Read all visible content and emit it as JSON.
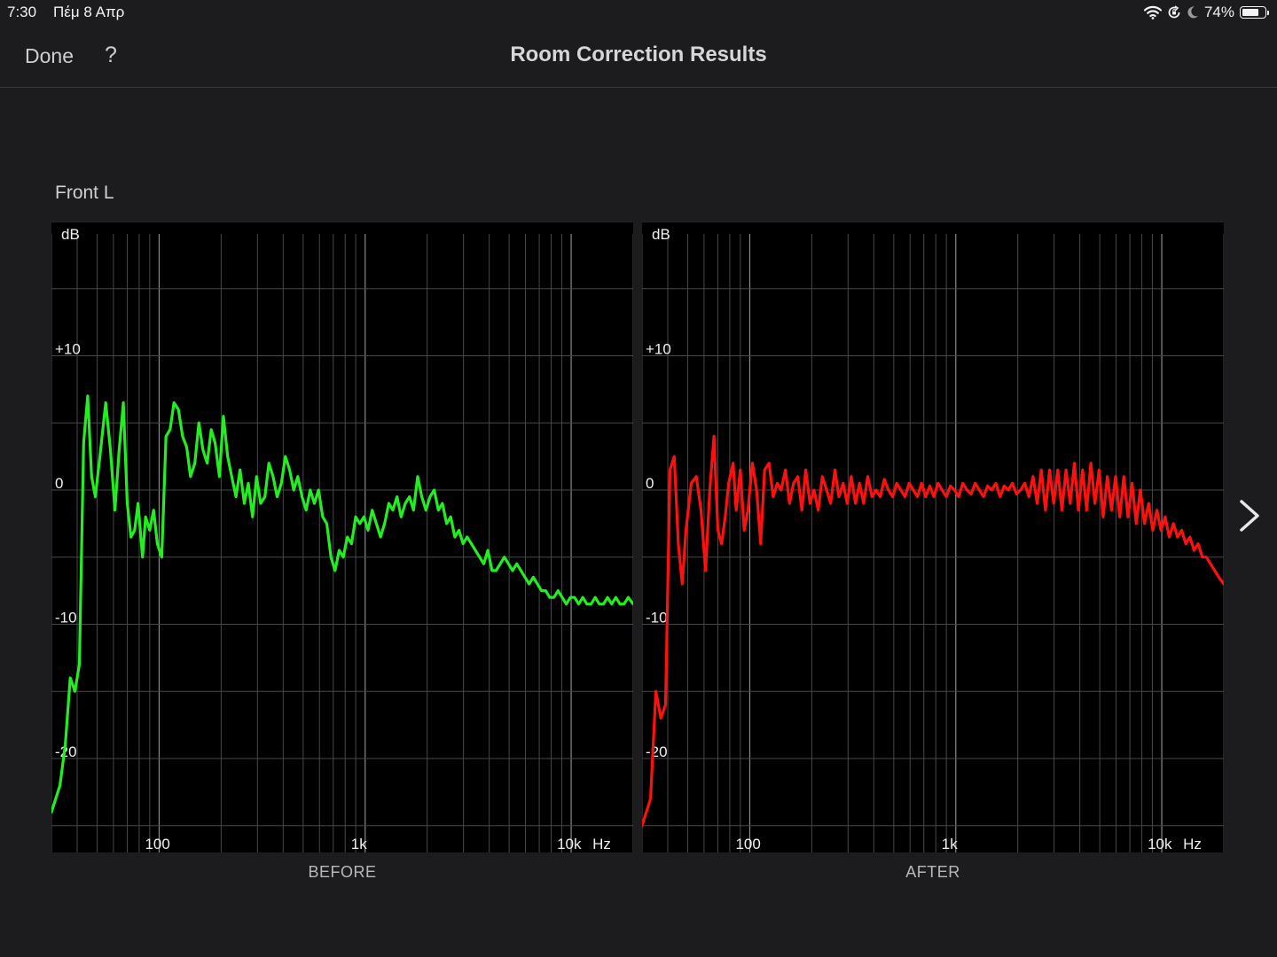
{
  "status_bar": {
    "time": "7:30",
    "date": "Πέμ 8 Απρ",
    "battery": "74%",
    "battery_level": 0.74,
    "icons": [
      "wifi-icon",
      "orientation-lock-icon",
      "moon-icon",
      "battery-icon"
    ]
  },
  "nav": {
    "done_label": "Done",
    "help_label": "?",
    "title": "Room Correction Results"
  },
  "channel": "Front L",
  "next_icon": "chevron-right-icon",
  "chart_data": [
    {
      "type": "line",
      "caption": "BEFORE",
      "color": "#22ee22",
      "xlabel": "Hz",
      "ylabel": "dB",
      "x_scale": "log",
      "xlim": [
        30,
        20000
      ],
      "ylim": [
        -27,
        20
      ],
      "x_ticks": [
        "100",
        "1k",
        "10k"
      ],
      "y_ticks": [
        "+10",
        "0",
        "-10",
        "-20"
      ],
      "grid": true,
      "x": [
        30,
        33,
        35,
        37,
        39,
        41,
        43,
        45,
        47,
        49,
        52,
        55,
        58,
        61,
        64,
        67,
        70,
        73,
        76,
        79,
        83,
        86,
        90,
        94,
        98,
        103,
        108,
        113,
        118,
        124,
        130,
        136,
        142,
        149,
        156,
        163,
        171,
        179,
        187,
        196,
        205,
        215,
        225,
        236,
        247,
        259,
        271,
        284,
        297,
        311,
        326,
        341,
        357,
        374,
        392,
        410,
        430,
        450,
        471,
        494,
        517,
        541,
        567,
        594,
        622,
        651,
        682,
        714,
        748,
        783,
        820,
        859,
        900,
        942,
        987,
        1033,
        1082,
        1133,
        1187,
        1243,
        1302,
        1363,
        1428,
        1495,
        1566,
        1640,
        1717,
        1798,
        1883,
        1972,
        2065,
        2163,
        2265,
        2372,
        2484,
        2601,
        2724,
        2853,
        2987,
        3128,
        3276,
        3431,
        3593,
        3763,
        3940,
        4126,
        4321,
        4525,
        4739,
        4963,
        5197,
        5443,
        5700,
        5969,
        6251,
        6546,
        6855,
        7179,
        7518,
        7873,
        8245,
        8634,
        9042,
        9469,
        9916,
        10384,
        10875,
        11388,
        11926,
        12489,
        13079,
        13697,
        14344,
        15021,
        15730,
        16473,
        17251,
        18066,
        18919,
        20000
      ],
      "y": [
        -24,
        -22,
        -19,
        -14,
        -15,
        -13,
        3.5,
        7,
        1,
        -0.5,
        3,
        6.5,
        3,
        -1.5,
        3,
        6.5,
        -1,
        -3.5,
        -3,
        -1,
        -5,
        -2,
        -3,
        -1.5,
        -4,
        -5,
        4,
        4.5,
        6.5,
        6,
        4,
        3.2,
        1,
        2,
        5,
        3,
        2,
        4.5,
        3.5,
        1,
        5.5,
        2.5,
        1,
        -0.5,
        1.5,
        -1,
        0.5,
        -2,
        1,
        -1,
        -0.5,
        2,
        1,
        -0.5,
        0.5,
        2.5,
        1.5,
        0,
        1,
        -0.5,
        -1.5,
        0,
        -1,
        0,
        -2,
        -2.5,
        -5,
        -6,
        -4.5,
        -5,
        -3.5,
        -4,
        -2,
        -2.5,
        -2,
        -3,
        -1.5,
        -2.5,
        -3.5,
        -2.5,
        -1,
        -1.5,
        -0.5,
        -2,
        -1,
        -0.5,
        -1.5,
        1,
        -0.5,
        -1.5,
        -0.5,
        0,
        -1.5,
        -1,
        -2.5,
        -2,
        -3.5,
        -3,
        -4,
        -3.5,
        -4,
        -4.5,
        -5,
        -5.5,
        -4.5,
        -6,
        -6,
        -5.5,
        -5,
        -5.5,
        -6,
        -5.5,
        -6,
        -6.5,
        -7,
        -6.5,
        -7,
        -7.5,
        -7.5,
        -8,
        -8,
        -7.5,
        -8,
        -8.5,
        -8,
        -8,
        -8.5,
        -8,
        -8.5,
        -8.5,
        -8,
        -8.5,
        -8.5,
        -8,
        -8.5,
        -8,
        -8.5,
        -8.5,
        -8,
        -8.5
      ]
    },
    {
      "type": "line",
      "caption": "AFTER",
      "color": "#ff1010",
      "xlabel": "Hz",
      "ylabel": "dB",
      "x_scale": "log",
      "xlim": [
        30,
        20000
      ],
      "ylim": [
        -27,
        20
      ],
      "x_ticks": [
        "100",
        "1k",
        "10k"
      ],
      "y_ticks": [
        "+10",
        "0",
        "-10",
        "-20"
      ],
      "grid": true,
      "x": [
        30,
        33,
        35,
        37,
        39,
        41,
        43,
        45,
        47,
        49,
        52,
        55,
        58,
        61,
        64,
        67,
        70,
        73,
        76,
        79,
        83,
        86,
        90,
        94,
        98,
        103,
        108,
        113,
        118,
        124,
        130,
        136,
        142,
        149,
        156,
        163,
        171,
        179,
        187,
        196,
        205,
        215,
        225,
        236,
        247,
        259,
        271,
        284,
        297,
        311,
        326,
        341,
        357,
        374,
        392,
        410,
        430,
        450,
        471,
        494,
        517,
        541,
        567,
        594,
        622,
        651,
        682,
        714,
        748,
        783,
        820,
        859,
        900,
        942,
        987,
        1033,
        1082,
        1133,
        1187,
        1243,
        1302,
        1363,
        1428,
        1495,
        1566,
        1640,
        1717,
        1798,
        1883,
        1972,
        2065,
        2163,
        2265,
        2372,
        2484,
        2601,
        2724,
        2853,
        2987,
        3128,
        3276,
        3431,
        3593,
        3763,
        3940,
        4126,
        4321,
        4525,
        4739,
        4963,
        5197,
        5443,
        5700,
        5969,
        6251,
        6546,
        6855,
        7179,
        7518,
        7873,
        8245,
        8634,
        9042,
        9469,
        9916,
        10384,
        10875,
        11388,
        11926,
        12489,
        13079,
        13697,
        14344,
        15021,
        15730,
        16473,
        17251,
        18066,
        18919,
        20000
      ],
      "y": [
        -25,
        -23,
        -15,
        -17,
        -16,
        1.5,
        2.5,
        -4,
        -7,
        -3,
        0.5,
        1,
        -1.5,
        -6,
        0,
        4,
        -3,
        -4,
        -2,
        0.5,
        2,
        -1.5,
        1.5,
        -3,
        -1.5,
        2,
        0,
        -4,
        1.5,
        2,
        -0.5,
        0.5,
        0,
        1.5,
        -1,
        0.5,
        1,
        -1.5,
        1.5,
        -1,
        0,
        -1.5,
        1,
        0,
        -1,
        1.5,
        -0.5,
        0.5,
        -1,
        1,
        -1,
        0.5,
        -1,
        1,
        -0.5,
        0,
        -0.5,
        0.8,
        0,
        -0.5,
        0.5,
        0,
        -0.5,
        0.5,
        0,
        -0.5,
        0.5,
        -0.5,
        0.3,
        -0.5,
        0.5,
        0,
        -0.5,
        0.3,
        0,
        -0.5,
        0.5,
        0,
        -0.3,
        0.5,
        0,
        -0.5,
        0.3,
        0,
        0.5,
        -0.5,
        0.3,
        0,
        0.5,
        -0.3,
        0,
        0.5,
        -0.5,
        1,
        -1,
        1.5,
        -1.5,
        1.5,
        -1,
        1.5,
        -1.5,
        1.5,
        -1,
        2,
        -1.5,
        1.5,
        -1.5,
        2,
        -1,
        1.5,
        -2,
        1,
        -1.5,
        1,
        -2,
        1,
        -2,
        0.5,
        -2.5,
        0,
        -2.5,
        -1,
        -3,
        -1.5,
        -3,
        -2,
        -3.5,
        -2.5,
        -3.5,
        -3,
        -4,
        -3.5,
        -4.5,
        -4,
        -5,
        -5,
        -5.5,
        -6,
        -6.5,
        -7
      ]
    }
  ]
}
